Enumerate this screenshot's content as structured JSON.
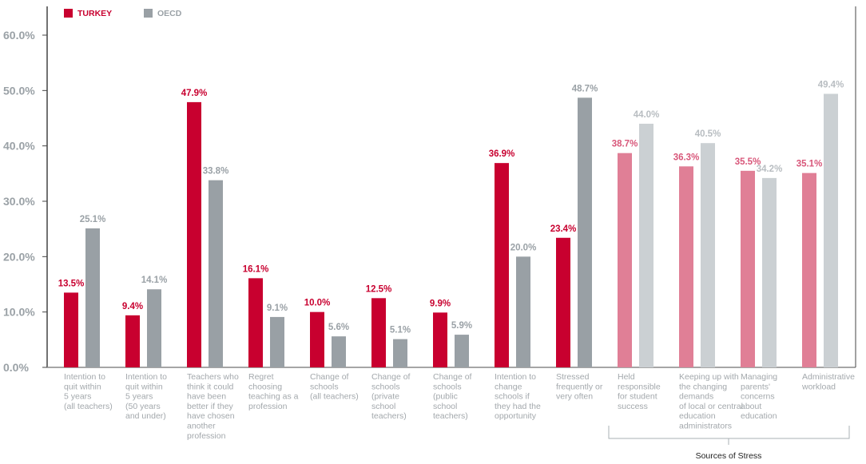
{
  "chart_data": {
    "type": "bar",
    "legend": [
      {
        "name": "TURKEY",
        "color": "#c8002f"
      },
      {
        "name": "OECD",
        "color": "#99a0a5"
      }
    ],
    "legend_position": "top-left",
    "ylim": [
      0,
      60
    ],
    "yticks": [
      "0.0%",
      "10.0%",
      "20.0%",
      "30.0%",
      "40.0%",
      "50.0%",
      "60.0%"
    ],
    "grid": false,
    "categories": [
      [
        "Intention to",
        "quit within",
        "5 years",
        "(all teachers)"
      ],
      [
        "Intention to",
        "quit within",
        "5 years",
        "(50 years",
        "and under)"
      ],
      [
        "Teachers who",
        "think it could",
        "have been",
        "better if they",
        "have chosen",
        "another",
        "profession"
      ],
      [
        "Regret",
        "choosing",
        "teaching as a",
        "profession"
      ],
      [
        "Change of",
        "schools",
        "(all teachers)"
      ],
      [
        "Change of",
        "schools",
        "(private",
        "school",
        "teachers)"
      ],
      [
        "Change of",
        "schools",
        "(public",
        "school",
        "teachers)"
      ],
      [
        "Intention to",
        "change",
        "schools if",
        "they had the",
        "opportunity"
      ],
      [
        "Stressed",
        "frequently or",
        "very often"
      ],
      [
        "Held",
        "responsible",
        "for student",
        "success"
      ],
      [
        "Keeping up with",
        "the changing",
        "demands",
        "of local or central",
        "education",
        "administrators"
      ],
      [
        "Managing",
        "parents'",
        "concerns",
        "about",
        "education"
      ],
      [
        "Administrative",
        "workload"
      ]
    ],
    "series": [
      {
        "name": "TURKEY",
        "values": [
          13.5,
          9.4,
          47.9,
          16.1,
          10.0,
          12.5,
          9.9,
          36.9,
          23.4,
          38.7,
          36.3,
          35.5,
          35.1
        ],
        "labels": [
          "13.5%",
          "9.4%",
          "47.9%",
          "16.1%",
          "10.0%",
          "12.5%",
          "9.9%",
          "36.9%",
          "23.4%",
          "38.7%",
          "36.3%",
          "35.5%",
          "35.1%"
        ]
      },
      {
        "name": "OECD",
        "values": [
          25.1,
          14.1,
          33.8,
          9.1,
          5.6,
          5.1,
          5.9,
          20.0,
          48.7,
          44.0,
          40.5,
          34.2,
          49.4
        ],
        "labels": [
          "25.1%",
          "14.1%",
          "33.8%",
          "9.1%",
          "5.6%",
          "5.1%",
          "5.9%",
          "20.0%",
          "48.7%",
          "44.0%",
          "40.5%",
          "34.2%",
          "49.4%"
        ]
      }
    ],
    "group_bracket": {
      "label": "Sources of Stress",
      "from_category": 9,
      "to_category": 12
    },
    "highlight_colors": {
      "TURKEY": "#e07f96",
      "OECD": "#cbd0d3"
    }
  }
}
